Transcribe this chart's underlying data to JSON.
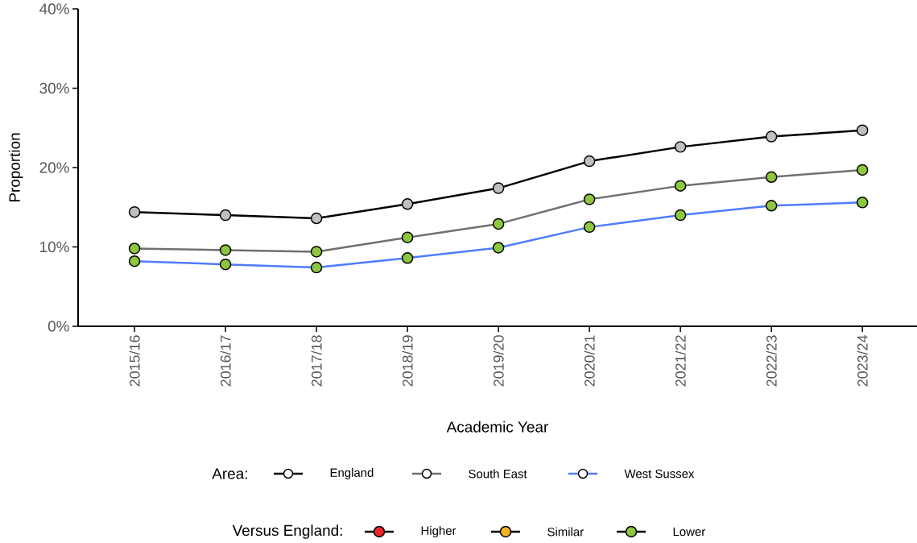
{
  "chart_data": {
    "type": "line",
    "xlabel": "Academic Year",
    "ylabel": "Proportion",
    "categories": [
      "2015/16",
      "2016/17",
      "2017/18",
      "2018/19",
      "2019/20",
      "2020/21",
      "2021/22",
      "2022/23",
      "2023/24"
    ],
    "series": [
      {
        "name": "England",
        "color": "#000000",
        "colors": [
          "#c0c0c0",
          "#c0c0c0",
          "#c0c0c0",
          "#c0c0c0",
          "#c0c0c0",
          "#c0c0c0",
          "#c0c0c0",
          "#c0c0c0",
          "#c0c0c0"
        ],
        "values": [
          14.4,
          14.0,
          13.6,
          15.4,
          17.4,
          20.8,
          22.6,
          23.9,
          24.7
        ]
      },
      {
        "name": "South East",
        "color": "#707070",
        "colors": [
          "#8dc63f",
          "#8dc63f",
          "#8dc63f",
          "#8dc63f",
          "#8dc63f",
          "#8dc63f",
          "#8dc63f",
          "#8dc63f",
          "#8dc63f"
        ],
        "values": [
          9.8,
          9.6,
          9.4,
          11.2,
          12.9,
          16.0,
          17.7,
          18.8,
          19.7
        ]
      },
      {
        "name": "West Sussex",
        "color": "#4f7cff",
        "colors": [
          "#8dc63f",
          "#8dc63f",
          "#8dc63f",
          "#8dc63f",
          "#8dc63f",
          "#8dc63f",
          "#8dc63f",
          "#8dc63f",
          "#8dc63f"
        ],
        "values": [
          8.2,
          7.8,
          7.4,
          8.6,
          9.9,
          12.5,
          14.0,
          15.2,
          15.6
        ]
      }
    ],
    "ylim": [
      0,
      40
    ],
    "yticks": [
      {
        "value": 0,
        "label": "0%"
      },
      {
        "value": 10,
        "label": "10%"
      },
      {
        "value": 20,
        "label": "20%"
      },
      {
        "value": 30,
        "label": "30%"
      },
      {
        "value": 40,
        "label": "40%"
      }
    ],
    "grid": false,
    "legend": "bottom",
    "legend_title": "Area:",
    "marker": "circle",
    "line_style": "solid",
    "annotations": [
      "Versus England:",
      "Higher",
      "Similar",
      "Lower"
    ]
  }
}
